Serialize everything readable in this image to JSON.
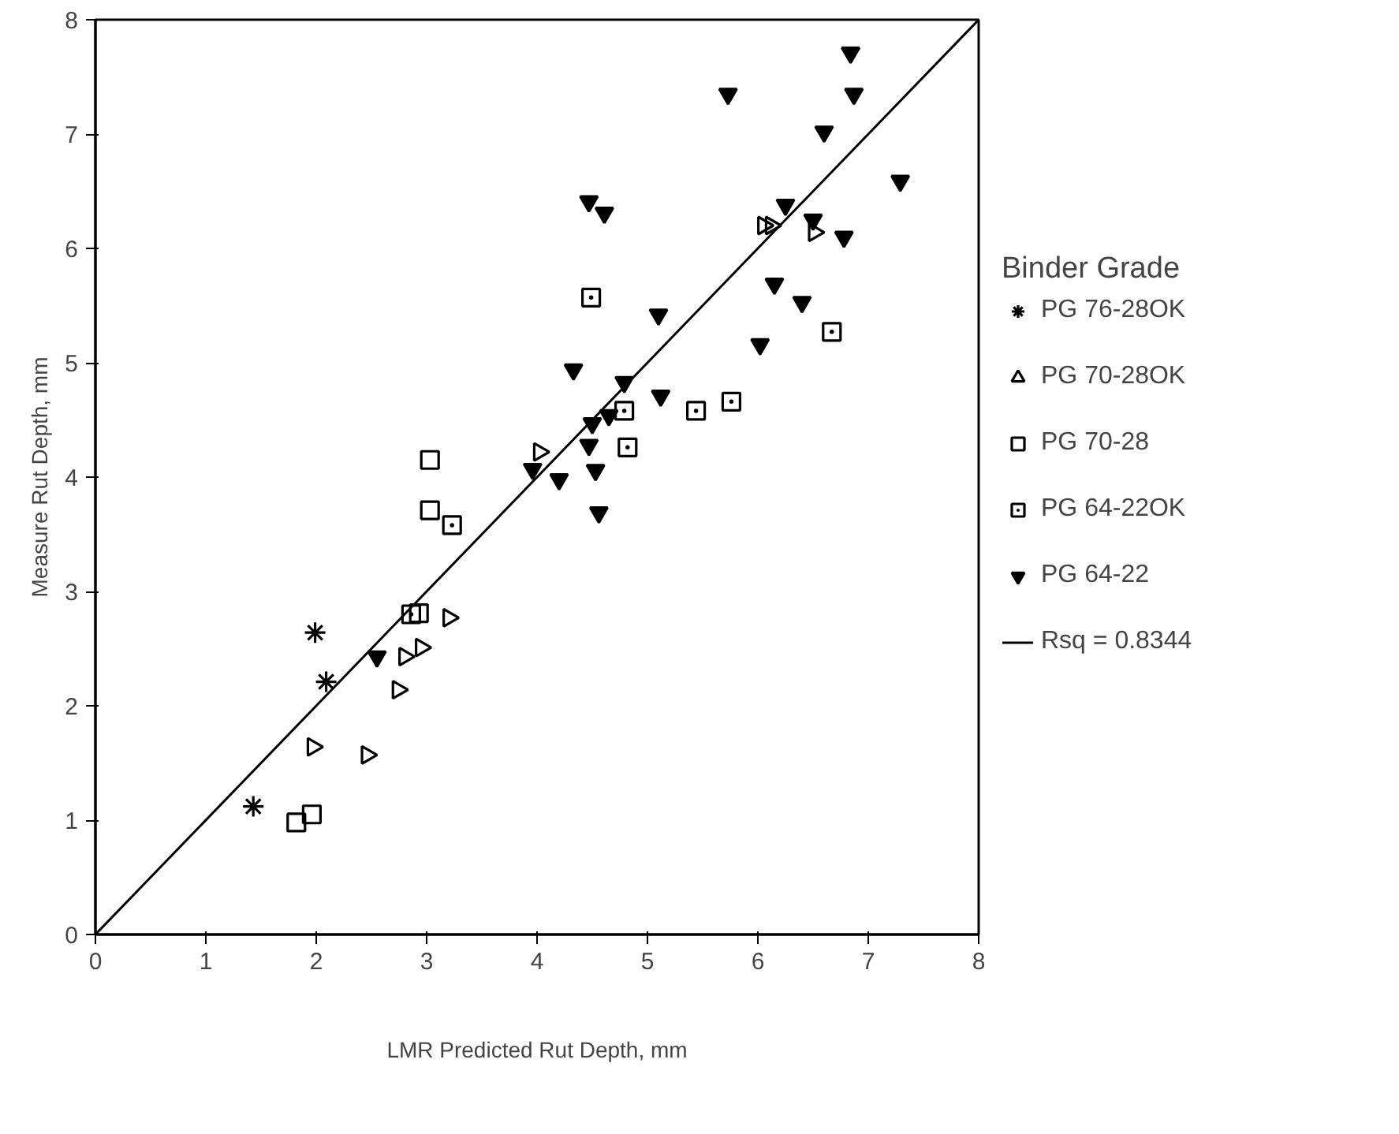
{
  "chart_data": {
    "type": "scatter",
    "xlabel": "LMR Predicted Rut Depth, mm",
    "ylabel": "Measure Rut Depth, mm",
    "legend_title": "Binder Grade",
    "legend": "right",
    "grid": false,
    "xlim": [
      0,
      8
    ],
    "ylim": [
      0,
      8
    ],
    "xticks": [
      0,
      1,
      2,
      3,
      4,
      5,
      6,
      7,
      8
    ],
    "yticks": [
      0,
      1,
      2,
      3,
      4,
      5,
      6,
      7,
      8
    ],
    "annotations": [
      "Rsq = 0.8344"
    ],
    "series": [
      {
        "name": "PG 76-28OK",
        "color": "#000000",
        "marker": "cross",
        "x": [
          1.43,
          1.99,
          2.09
        ],
        "values": [
          1.12,
          2.64,
          2.21
        ]
      },
      {
        "name": "PG 70-28OK",
        "color": "#000000",
        "marker": "triangle",
        "x": [
          1.97,
          2.46,
          2.74,
          2.8,
          2.95,
          3.2,
          4.02,
          6.05,
          6.12,
          6.51
        ],
        "values": [
          1.64,
          1.57,
          2.14,
          2.43,
          2.51,
          2.77,
          4.22,
          6.2,
          6.2,
          6.14
        ]
      },
      {
        "name": "PG 70-28",
        "color": "#000000",
        "marker": "square",
        "x": [
          1.82,
          1.96,
          2.93,
          3.03,
          3.03
        ],
        "values": [
          0.98,
          1.05,
          2.81,
          4.15,
          3.71
        ]
      },
      {
        "name": "PG 64-22OK",
        "color": "#000000",
        "marker": "square-dot",
        "x": [
          2.86,
          3.23,
          4.79,
          4.82,
          5.44,
          5.76,
          4.49,
          6.67
        ],
        "values": [
          2.8,
          3.58,
          4.58,
          4.26,
          4.58,
          4.66,
          5.57,
          5.27
        ]
      },
      {
        "name": "PG 64-22",
        "color": "#000000",
        "marker": "triangle-down",
        "x": [
          2.55,
          3.96,
          4.2,
          4.47,
          4.53,
          4.56,
          4.5,
          4.65,
          5.12,
          4.79,
          4.47,
          4.61,
          6.25,
          6.5,
          6.78,
          5.1,
          6.15,
          6.4,
          6.02,
          4.33,
          6.84,
          5.73,
          6.87,
          6.6,
          7.29
        ],
        "values": [
          2.43,
          4.07,
          3.98,
          4.28,
          4.06,
          3.69,
          4.47,
          4.54,
          4.71,
          4.83,
          6.41,
          6.31,
          6.38,
          6.25,
          6.1,
          5.42,
          5.69,
          5.53,
          5.16,
          4.94,
          7.71,
          7.35,
          7.35,
          7.02,
          6.59
        ]
      },
      {
        "type": "line",
        "color": "#000000",
        "x": [
          0,
          8
        ],
        "values": [
          0,
          8
        ]
      }
    ]
  }
}
